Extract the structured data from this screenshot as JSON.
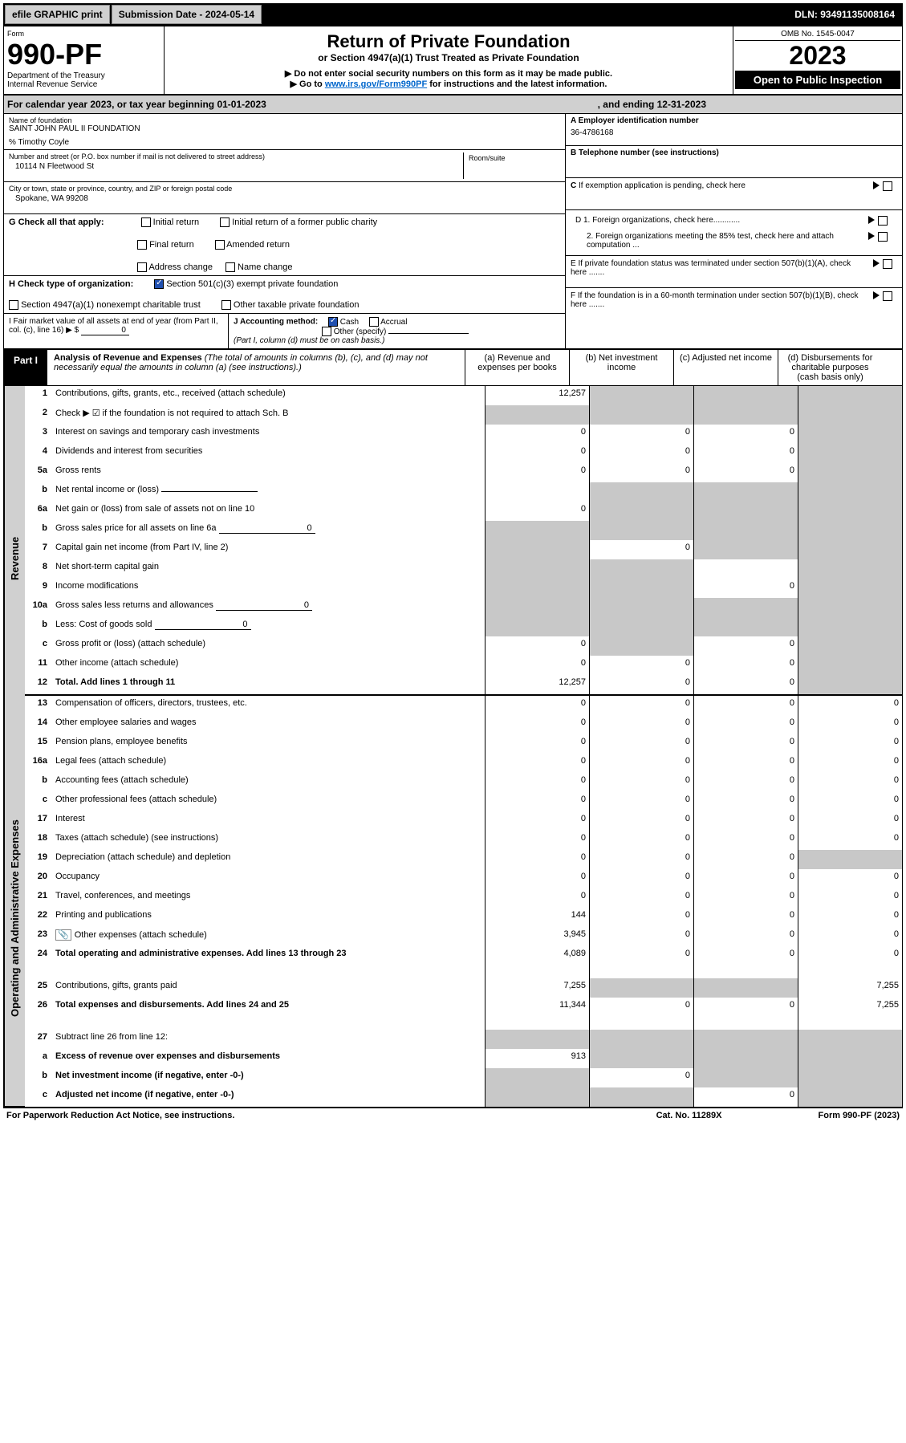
{
  "header": {
    "efile": "efile GRAPHIC print",
    "submission": "Submission Date - 2024-05-14",
    "dln": "DLN: 93491135008164"
  },
  "formbox": {
    "form_label": "Form",
    "form_number": "990-PF",
    "dept": "Department of the Treasury",
    "irs": "Internal Revenue Service"
  },
  "titlebox": {
    "title": "Return of Private Foundation",
    "subtitle": "or Section 4947(a)(1) Trust Treated as Private Foundation",
    "line1": "▶ Do not enter social security numbers on this form as it may be made public.",
    "line2_pre": "▶ Go to ",
    "line2_link": "www.irs.gov/Form990PF",
    "line2_post": " for instructions and the latest information."
  },
  "rightbox": {
    "omb": "OMB No. 1545-0047",
    "year": "2023",
    "open": "Open to Public Inspection"
  },
  "calendar": {
    "text": "For calendar year 2023, or tax year beginning 01-01-2023",
    "end": ", and ending 12-31-2023"
  },
  "entity": {
    "name_lbl": "Name of foundation",
    "name": "SAINT JOHN PAUL II FOUNDATION",
    "care_of": "% Timothy Coyle",
    "addr_lbl": "Number and street (or P.O. box number if mail is not delivered to street address)",
    "addr": "10114 N Fleetwood St",
    "room_lbl": "Room/suite",
    "city_lbl": "City or town, state or province, country, and ZIP or foreign postal code",
    "city": "Spokane, WA  99208"
  },
  "right_info": {
    "a_lbl": "A Employer identification number",
    "a_val": "36-4786168",
    "b_lbl": "B Telephone number (see instructions)",
    "c_lbl": "C If exemption application is pending, check here",
    "d1": "D 1. Foreign organizations, check here............",
    "d2": "2. Foreign organizations meeting the 85% test, check here and attach computation ...",
    "e": "E  If private foundation status was terminated under section 507(b)(1)(A), check here .......",
    "f": "F  If the foundation is in a 60-month termination under section 507(b)(1)(B), check here .......",
    "g_lbl": "G Check all that apply:",
    "g_opts": [
      "Initial return",
      "Initial return of a former public charity",
      "Final return",
      "Amended return",
      "Address change",
      "Name change"
    ],
    "h_lbl": "H Check type of organization:",
    "h1": "Section 501(c)(3) exempt private foundation",
    "h2": "Section 4947(a)(1) nonexempt charitable trust",
    "h3": "Other taxable private foundation",
    "i_lbl": "I Fair market value of all assets at end of year (from Part II, col. (c), line 16) ▶ $",
    "i_val": "0",
    "j_lbl": "J Accounting method:",
    "j_cash": "Cash",
    "j_accrual": "Accrual",
    "j_other": "Other (specify)",
    "j_note": "(Part I, column (d) must be on cash basis.)"
  },
  "part1": {
    "tag": "Part I",
    "title": "Analysis of Revenue and Expenses",
    "note": "(The total of amounts in columns (b), (c), and (d) may not necessarily equal the amounts in column (a) (see instructions).)",
    "cols": {
      "a": "(a)  Revenue and expenses per books",
      "b": "(b)  Net investment income",
      "c": "(c)  Adjusted net income",
      "d": "(d)  Disbursements for charitable purposes (cash basis only)"
    }
  },
  "sections": {
    "revenue": "Revenue",
    "expenses": "Operating and Administrative Expenses"
  },
  "rows": [
    {
      "n": "1",
      "d": "Contributions, gifts, grants, etc., received (attach schedule)",
      "a": "12,257",
      "b": "",
      "c": "",
      "ds": "",
      "bsh": 1,
      "csh": 1,
      "dsh": 1
    },
    {
      "n": "2",
      "d": "Check ▶ ☑ if the foundation is not required to attach Sch. B",
      "a": "",
      "b": "",
      "c": "",
      "ds": "",
      "ash": 1,
      "bsh": 1,
      "csh": 1,
      "dsh": 1
    },
    {
      "n": "3",
      "d": "Interest on savings and temporary cash investments",
      "a": "0",
      "b": "0",
      "c": "0",
      "ds": "",
      "dsh": 1
    },
    {
      "n": "4",
      "d": "Dividends and interest from securities",
      "a": "0",
      "b": "0",
      "c": "0",
      "ds": "",
      "dsh": 1
    },
    {
      "n": "5a",
      "d": "Gross rents",
      "a": "0",
      "b": "0",
      "c": "0",
      "ds": "",
      "dsh": 1
    },
    {
      "n": "b",
      "d": "Net rental income or (loss)",
      "a": "",
      "b": "",
      "c": "",
      "ds": "",
      "ash": 0,
      "bsh": 1,
      "csh": 1,
      "dsh": 1,
      "inline": 1
    },
    {
      "n": "6a",
      "d": "Net gain or (loss) from sale of assets not on line 10",
      "a": "0",
      "b": "",
      "c": "",
      "ds": "",
      "bsh": 1,
      "csh": 1,
      "dsh": 1
    },
    {
      "n": "b",
      "d": "Gross sales price for all assets on line 6a",
      "a": "",
      "b": "",
      "c": "",
      "ds": "",
      "ash": 1,
      "bsh": 1,
      "csh": 1,
      "dsh": 1,
      "inline": 1,
      "inlineval": "0"
    },
    {
      "n": "7",
      "d": "Capital gain net income (from Part IV, line 2)",
      "a": "",
      "b": "0",
      "c": "",
      "ds": "",
      "ash": 1,
      "csh": 1,
      "dsh": 1
    },
    {
      "n": "8",
      "d": "Net short-term capital gain",
      "a": "",
      "b": "",
      "c": "",
      "ds": "",
      "ash": 1,
      "bsh": 1,
      "dsh": 1
    },
    {
      "n": "9",
      "d": "Income modifications",
      "a": "",
      "b": "",
      "c": "0",
      "ds": "",
      "ash": 1,
      "bsh": 1,
      "dsh": 1
    },
    {
      "n": "10a",
      "d": "Gross sales less returns and allowances",
      "a": "",
      "b": "",
      "c": "",
      "ds": "",
      "ash": 1,
      "bsh": 1,
      "csh": 1,
      "dsh": 1,
      "inline": 1,
      "inlineval": "0"
    },
    {
      "n": "b",
      "d": "Less: Cost of goods sold",
      "a": "",
      "b": "",
      "c": "",
      "ds": "",
      "ash": 1,
      "bsh": 1,
      "csh": 1,
      "dsh": 1,
      "inline": 1,
      "inlineval": "0"
    },
    {
      "n": "c",
      "d": "Gross profit or (loss) (attach schedule)",
      "a": "0",
      "b": "",
      "c": "0",
      "ds": "",
      "bsh": 1,
      "dsh": 1
    },
    {
      "n": "11",
      "d": "Other income (attach schedule)",
      "a": "0",
      "b": "0",
      "c": "0",
      "ds": "",
      "dsh": 1
    },
    {
      "n": "12",
      "d": "Total. Add lines 1 through 11",
      "a": "12,257",
      "b": "0",
      "c": "0",
      "ds": "",
      "dsh": 1,
      "bold": 1
    }
  ],
  "exp_rows": [
    {
      "n": "13",
      "d": "Compensation of officers, directors, trustees, etc.",
      "a": "0",
      "b": "0",
      "c": "0",
      "ds": "0"
    },
    {
      "n": "14",
      "d": "Other employee salaries and wages",
      "a": "0",
      "b": "0",
      "c": "0",
      "ds": "0"
    },
    {
      "n": "15",
      "d": "Pension plans, employee benefits",
      "a": "0",
      "b": "0",
      "c": "0",
      "ds": "0"
    },
    {
      "n": "16a",
      "d": "Legal fees (attach schedule)",
      "a": "0",
      "b": "0",
      "c": "0",
      "ds": "0"
    },
    {
      "n": "b",
      "d": "Accounting fees (attach schedule)",
      "a": "0",
      "b": "0",
      "c": "0",
      "ds": "0"
    },
    {
      "n": "c",
      "d": "Other professional fees (attach schedule)",
      "a": "0",
      "b": "0",
      "c": "0",
      "ds": "0"
    },
    {
      "n": "17",
      "d": "Interest",
      "a": "0",
      "b": "0",
      "c": "0",
      "ds": "0"
    },
    {
      "n": "18",
      "d": "Taxes (attach schedule) (see instructions)",
      "a": "0",
      "b": "0",
      "c": "0",
      "ds": "0"
    },
    {
      "n": "19",
      "d": "Depreciation (attach schedule) and depletion",
      "a": "0",
      "b": "0",
      "c": "0",
      "ds": "",
      "dsh": 1
    },
    {
      "n": "20",
      "d": "Occupancy",
      "a": "0",
      "b": "0",
      "c": "0",
      "ds": "0"
    },
    {
      "n": "21",
      "d": "Travel, conferences, and meetings",
      "a": "0",
      "b": "0",
      "c": "0",
      "ds": "0"
    },
    {
      "n": "22",
      "d": "Printing and publications",
      "a": "144",
      "b": "0",
      "c": "0",
      "ds": "0"
    },
    {
      "n": "23",
      "d": "Other expenses (attach schedule)",
      "a": "3,945",
      "b": "0",
      "c": "0",
      "ds": "0",
      "icon": 1
    },
    {
      "n": "24",
      "d": "Total operating and administrative expenses. Add lines 13 through 23",
      "a": "4,089",
      "b": "0",
      "c": "0",
      "ds": "0",
      "bold": 1,
      "tall": 1
    },
    {
      "n": "25",
      "d": "Contributions, gifts, grants paid",
      "a": "7,255",
      "b": "",
      "c": "",
      "ds": "7,255",
      "bsh": 1,
      "csh": 1
    },
    {
      "n": "26",
      "d": "Total expenses and disbursements. Add lines 24 and 25",
      "a": "11,344",
      "b": "0",
      "c": "0",
      "ds": "7,255",
      "bold": 1,
      "tall": 1
    },
    {
      "n": "27",
      "d": "Subtract line 26 from line 12:",
      "a": "",
      "b": "",
      "c": "",
      "ds": "",
      "ash": 1,
      "bsh": 1,
      "csh": 1,
      "dsh": 1
    },
    {
      "n": "a",
      "d": "Excess of revenue over expenses and disbursements",
      "a": "913",
      "b": "",
      "c": "",
      "ds": "",
      "bsh": 1,
      "csh": 1,
      "dsh": 1,
      "bold": 1
    },
    {
      "n": "b",
      "d": "Net investment income (if negative, enter -0-)",
      "a": "",
      "b": "0",
      "c": "",
      "ds": "",
      "ash": 1,
      "csh": 1,
      "dsh": 1,
      "bold": 1
    },
    {
      "n": "c",
      "d": "Adjusted net income (if negative, enter -0-)",
      "a": "",
      "b": "",
      "c": "0",
      "ds": "",
      "ash": 1,
      "bsh": 1,
      "dsh": 1,
      "bold": 1
    }
  ],
  "footer": {
    "left": "For Paperwork Reduction Act Notice, see instructions.",
    "mid": "Cat. No. 11289X",
    "right": "Form 990-PF (2023)"
  },
  "colors": {
    "header_bg": "#000000",
    "btn_bg": "#d0d0d0",
    "shade": "#c8c8c8",
    "link": "#0066cc",
    "check": "#2050b0"
  }
}
